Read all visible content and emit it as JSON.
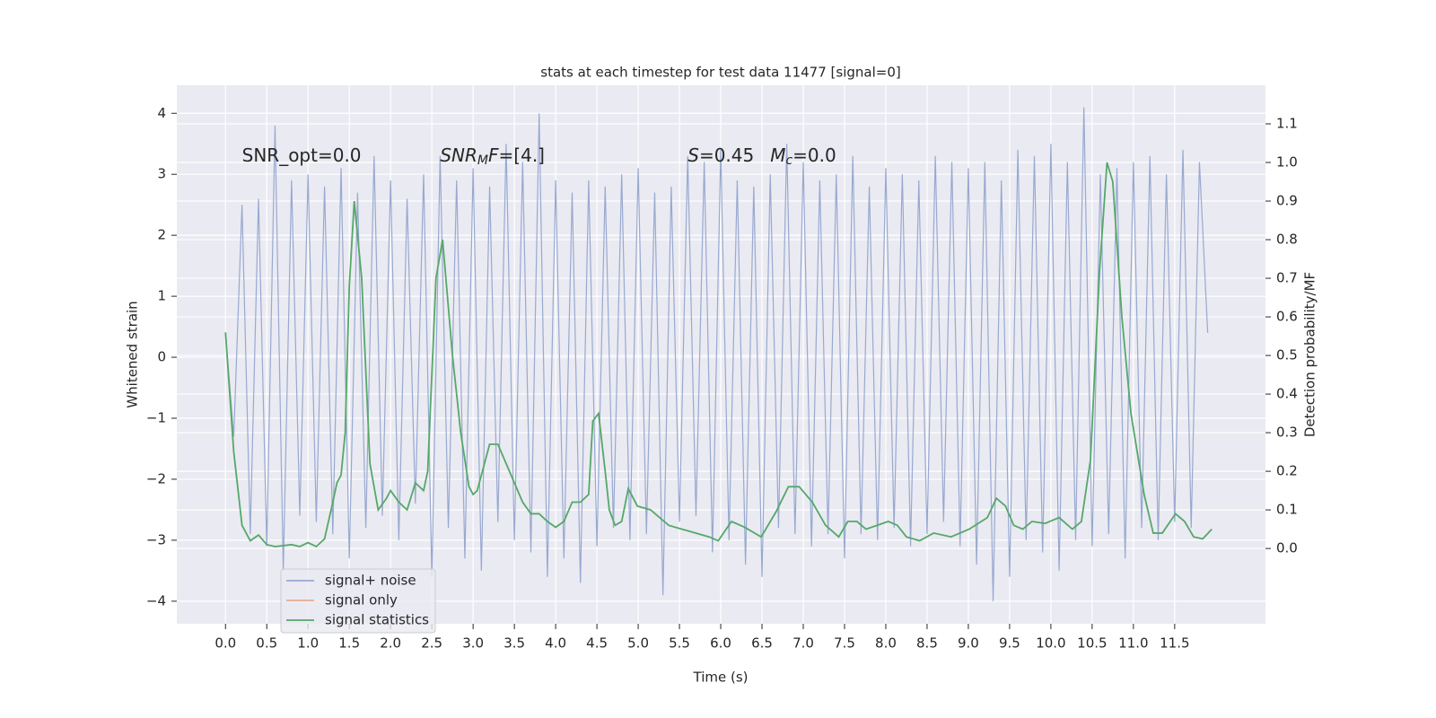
{
  "chart_data": {
    "type": "line",
    "title": "stats at each timestep for test data 11477 [signal=0]",
    "xlabel": "Time (s)",
    "ylabel": "Whitened strain",
    "y2label": "Detection probability/MF",
    "xlim": [
      -0.59,
      12.6
    ],
    "ylim": [
      -4.37,
      4.46
    ],
    "y2lim": [
      -0.195,
      1.2
    ],
    "grid": true,
    "legend": "lower left",
    "xticks": [
      {
        "value": 0,
        "label": "0.0"
      },
      {
        "value": 0.5,
        "label": "0.5"
      },
      {
        "value": 1,
        "label": "1.0"
      },
      {
        "value": 1.5,
        "label": "1.5"
      },
      {
        "value": 2,
        "label": "2.0"
      },
      {
        "value": 2.5,
        "label": "2.5"
      },
      {
        "value": 3,
        "label": "3.0"
      },
      {
        "value": 3.5,
        "label": "3.5"
      },
      {
        "value": 4,
        "label": "4.0"
      },
      {
        "value": 4.5,
        "label": "4.5"
      },
      {
        "value": 5,
        "label": "5.0"
      },
      {
        "value": 5.5,
        "label": "5.5"
      },
      {
        "value": 6,
        "label": "6.0"
      },
      {
        "value": 6.5,
        "label": "6.5"
      },
      {
        "value": 7,
        "label": "7.0"
      },
      {
        "value": 7.5,
        "label": "7.5"
      },
      {
        "value": 8,
        "label": "8.0"
      },
      {
        "value": 8.5,
        "label": "8.5"
      },
      {
        "value": 9,
        "label": "9.0"
      },
      {
        "value": 9.5,
        "label": "9.5"
      },
      {
        "value": 10,
        "label": "10.0"
      },
      {
        "value": 10.5,
        "label": "10.5"
      },
      {
        "value": 11,
        "label": "11.0"
      },
      {
        "value": 11.5,
        "label": "11.5"
      }
    ],
    "yticks": [
      {
        "value": -4,
        "label": "−4"
      },
      {
        "value": -3,
        "label": "−3"
      },
      {
        "value": -2,
        "label": "−2"
      },
      {
        "value": -1,
        "label": "−1"
      },
      0,
      1,
      2,
      3,
      4
    ],
    "y2ticks": [
      {
        "value": 0,
        "label": "0.0"
      },
      {
        "value": 0.1,
        "label": "0.1"
      },
      {
        "value": 0.2,
        "label": "0.2"
      },
      {
        "value": 0.3,
        "label": "0.3"
      },
      {
        "value": 0.4,
        "label": "0.4"
      },
      {
        "value": 0.5,
        "label": "0.5"
      },
      {
        "value": 0.6,
        "label": "0.6"
      },
      {
        "value": 0.7,
        "label": "0.7"
      },
      {
        "value": 0.8,
        "label": "0.8"
      },
      {
        "value": 0.9,
        "label": "0.9"
      },
      {
        "value": 1,
        "label": "1.0"
      },
      {
        "value": 1.1,
        "label": "1.1"
      }
    ],
    "annotations": [
      {
        "x": 0.2,
        "y": 3.3,
        "parts": [
          {
            "text": "SNR_opt=0.0"
          }
        ]
      },
      {
        "x": 2.6,
        "y": 3.3,
        "parts": [
          {
            "text": "SNR",
            "italic": true
          },
          {
            "text": "M",
            "italic": true,
            "sub": true
          },
          {
            "text": "F",
            "italic": true
          },
          {
            "text": "=[4.]"
          }
        ]
      },
      {
        "x": 5.6,
        "y": 3.3,
        "parts": [
          {
            "text": "S",
            "italic": true
          },
          {
            "text": "=0.45"
          }
        ]
      },
      {
        "x": 6.6,
        "y": 3.3,
        "parts": [
          {
            "text": "M",
            "italic": true
          },
          {
            "text": "c",
            "italic": true,
            "sub": true
          },
          {
            "text": "=0.0"
          }
        ]
      }
    ],
    "series": [
      {
        "name": "signal+ noise",
        "color": "#98a9d0",
        "x": [
          0.0,
          0.1,
          0.2,
          0.3,
          0.4,
          0.5,
          0.6,
          0.7,
          0.8,
          0.9,
          1.0,
          1.1,
          1.2,
          1.3,
          1.4,
          1.5,
          1.6,
          1.7,
          1.8,
          1.9,
          2.0,
          2.1,
          2.2,
          2.3,
          2.4,
          2.5,
          2.6,
          2.7,
          2.8,
          2.9,
          3.0,
          3.1,
          3.2,
          3.3,
          3.4,
          3.5,
          3.6,
          3.7,
          3.8,
          3.9,
          4.0,
          4.1,
          4.2,
          4.3,
          4.4,
          4.5,
          4.6,
          4.7,
          4.8,
          4.9,
          5.0,
          5.1,
          5.2,
          5.3,
          5.4,
          5.5,
          5.6,
          5.7,
          5.8,
          5.9,
          6.0,
          6.1,
          6.2,
          6.3,
          6.4,
          6.5,
          6.6,
          6.7,
          6.8,
          6.9,
          7.0,
          7.1,
          7.2,
          7.3,
          7.4,
          7.5,
          7.6,
          7.7,
          7.8,
          7.9,
          8.0,
          8.1,
          8.2,
          8.3,
          8.4,
          8.5,
          8.6,
          8.7,
          8.8,
          8.9,
          9.0,
          9.1,
          9.2,
          9.3,
          9.4,
          9.5,
          9.6,
          9.7,
          9.8,
          9.9,
          10.0,
          10.1,
          10.2,
          10.3,
          10.4,
          10.5,
          10.6,
          10.7,
          10.8,
          10.9,
          11.0,
          11.1,
          11.2,
          11.3,
          11.4,
          11.5,
          11.6,
          11.7,
          11.8,
          11.9
        ],
        "values": [
          0.4,
          -1.3,
          2.5,
          -2.9,
          2.6,
          -3.1,
          3.8,
          -3.5,
          2.9,
          -2.6,
          3.0,
          -2.7,
          2.8,
          -2.9,
          3.1,
          -3.3,
          2.7,
          -2.8,
          3.3,
          -2.6,
          2.9,
          -3.0,
          2.6,
          -2.4,
          3.0,
          -3.6,
          3.3,
          -2.8,
          2.9,
          -3.3,
          3.1,
          -3.5,
          2.8,
          -2.7,
          3.5,
          -3.0,
          3.2,
          -3.2,
          4.0,
          -3.6,
          2.9,
          -3.3,
          2.7,
          -3.7,
          2.9,
          -3.1,
          2.8,
          -2.8,
          3.0,
          -3.0,
          3.1,
          -2.9,
          2.7,
          -3.9,
          2.8,
          -2.7,
          3.3,
          -2.6,
          3.2,
          -3.2,
          3.4,
          -3.0,
          2.9,
          -3.4,
          2.8,
          -3.6,
          3.0,
          -2.8,
          3.5,
          -2.9,
          3.2,
          -3.1,
          2.9,
          -2.9,
          3.0,
          -3.3,
          3.3,
          -2.9,
          2.8,
          -3.0,
          3.1,
          -2.8,
          3.0,
          -3.1,
          2.9,
          -2.9,
          3.3,
          -2.7,
          3.2,
          -3.1,
          3.1,
          -3.4,
          3.2,
          -4.0,
          2.9,
          -3.6,
          3.4,
          -3.0,
          3.3,
          -3.2,
          3.5,
          -3.5,
          3.2,
          -3.0,
          4.1,
          -3.1,
          3.0,
          -2.9,
          3.1,
          -3.3,
          3.2,
          -2.8,
          3.3,
          -3.0,
          3.0,
          -2.7,
          3.4,
          -2.8,
          3.2,
          0.4
        ]
      },
      {
        "name": "signal only",
        "color": "#e6ab93"
      },
      {
        "name": "signal statistics",
        "color": "#55a868",
        "axis": "y2",
        "x": [
          0.0,
          0.1,
          0.2,
          0.3,
          0.4,
          0.5,
          0.6,
          0.8,
          0.9,
          1.0,
          1.1,
          1.2,
          1.3,
          1.35,
          1.4,
          1.45,
          1.5,
          1.56,
          1.65,
          1.75,
          1.85,
          1.95,
          2.0,
          2.1,
          2.2,
          2.3,
          2.4,
          2.45,
          2.55,
          2.63,
          2.75,
          2.85,
          2.95,
          3.0,
          3.05,
          3.2,
          3.3,
          3.4,
          3.5,
          3.6,
          3.7,
          3.8,
          3.9,
          4.0,
          4.1,
          4.2,
          4.3,
          4.4,
          4.45,
          4.52,
          4.6,
          4.65,
          4.72,
          4.8,
          4.88,
          4.99,
          5.15,
          5.37,
          5.53,
          5.86,
          5.97,
          6.13,
          6.29,
          6.49,
          6.67,
          6.82,
          6.95,
          7.11,
          7.27,
          7.43,
          7.54,
          7.65,
          7.76,
          8.03,
          8.14,
          8.25,
          8.41,
          8.58,
          8.79,
          9.01,
          9.23,
          9.34,
          9.45,
          9.55,
          9.66,
          9.77,
          9.93,
          10.1,
          10.26,
          10.37,
          10.48,
          10.59,
          10.68,
          10.75,
          10.86,
          10.97,
          11.13,
          11.24,
          11.35,
          11.51,
          11.62,
          11.73,
          11.84,
          11.95
        ],
        "values": [
          0.56,
          0.25,
          0.06,
          0.02,
          0.035,
          0.01,
          0.005,
          0.01,
          0.005,
          0.015,
          0.005,
          0.025,
          0.12,
          0.17,
          0.19,
          0.3,
          0.68,
          0.9,
          0.7,
          0.22,
          0.1,
          0.13,
          0.15,
          0.12,
          0.1,
          0.17,
          0.15,
          0.2,
          0.7,
          0.8,
          0.5,
          0.3,
          0.16,
          0.14,
          0.15,
          0.27,
          0.27,
          0.22,
          0.17,
          0.12,
          0.09,
          0.09,
          0.07,
          0.055,
          0.07,
          0.12,
          0.12,
          0.14,
          0.33,
          0.35,
          0.2,
          0.1,
          0.06,
          0.07,
          0.155,
          0.11,
          0.1,
          0.06,
          0.05,
          0.03,
          0.02,
          0.07,
          0.055,
          0.03,
          0.095,
          0.16,
          0.16,
          0.12,
          0.06,
          0.03,
          0.07,
          0.07,
          0.05,
          0.07,
          0.06,
          0.03,
          0.02,
          0.04,
          0.03,
          0.05,
          0.08,
          0.13,
          0.11,
          0.06,
          0.05,
          0.07,
          0.065,
          0.08,
          0.05,
          0.07,
          0.23,
          0.72,
          1.0,
          0.95,
          0.6,
          0.35,
          0.14,
          0.04,
          0.04,
          0.09,
          0.07,
          0.03,
          0.025,
          0.05
        ]
      }
    ]
  }
}
